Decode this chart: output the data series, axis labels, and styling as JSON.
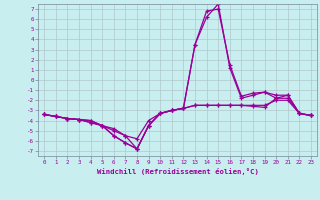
{
  "title": "",
  "xlabel": "Windchill (Refroidissement éolien,°C)",
  "ylabel": "",
  "bg_color": "#c8eef0",
  "grid_color": "#b0c8cc",
  "line_color": "#990099",
  "xlim": [
    -0.5,
    23.5
  ],
  "ylim": [
    -7.5,
    7.5
  ],
  "xticks": [
    0,
    1,
    2,
    3,
    4,
    5,
    6,
    7,
    8,
    9,
    10,
    11,
    12,
    13,
    14,
    15,
    16,
    17,
    18,
    19,
    20,
    21,
    22,
    23
  ],
  "yticks": [
    7,
    6,
    5,
    4,
    3,
    2,
    1,
    0,
    -1,
    -2,
    -3,
    -4,
    -5,
    -6,
    -7
  ],
  "series": [
    [
      -3.4,
      -3.6,
      -3.8,
      -3.9,
      -4.0,
      -4.5,
      -5.0,
      -5.5,
      -6.8,
      -4.5,
      -3.3,
      -3.0,
      -2.8,
      -2.5,
      -2.5,
      -2.5,
      -2.5,
      -2.5,
      -2.6,
      -2.7,
      -1.8,
      -1.8,
      -3.3,
      -3.5
    ],
    [
      -3.4,
      -3.6,
      -3.8,
      -3.9,
      -4.0,
      -4.5,
      -4.8,
      -5.5,
      -5.8,
      -4.0,
      -3.3,
      -3.0,
      -2.8,
      -2.5,
      -2.5,
      -2.5,
      -2.5,
      -2.5,
      -2.5,
      -2.5,
      -2.0,
      -2.0,
      -3.3,
      -3.5
    ],
    [
      -3.4,
      -3.6,
      -3.8,
      -3.9,
      -4.2,
      -4.5,
      -5.5,
      -6.2,
      -6.8,
      -4.5,
      -3.3,
      -3.0,
      -2.8,
      3.5,
      6.2,
      7.5,
      1.2,
      -1.8,
      -1.5,
      -1.2,
      -1.8,
      -1.5,
      -3.3,
      -3.5
    ],
    [
      -3.4,
      -3.6,
      -3.8,
      -3.9,
      -4.2,
      -4.5,
      -5.5,
      -6.2,
      -6.8,
      -4.5,
      -3.3,
      -3.0,
      -2.8,
      3.5,
      6.8,
      7.0,
      1.5,
      -1.6,
      -1.3,
      -1.2,
      -1.5,
      -1.5,
      -3.3,
      -3.5
    ]
  ]
}
